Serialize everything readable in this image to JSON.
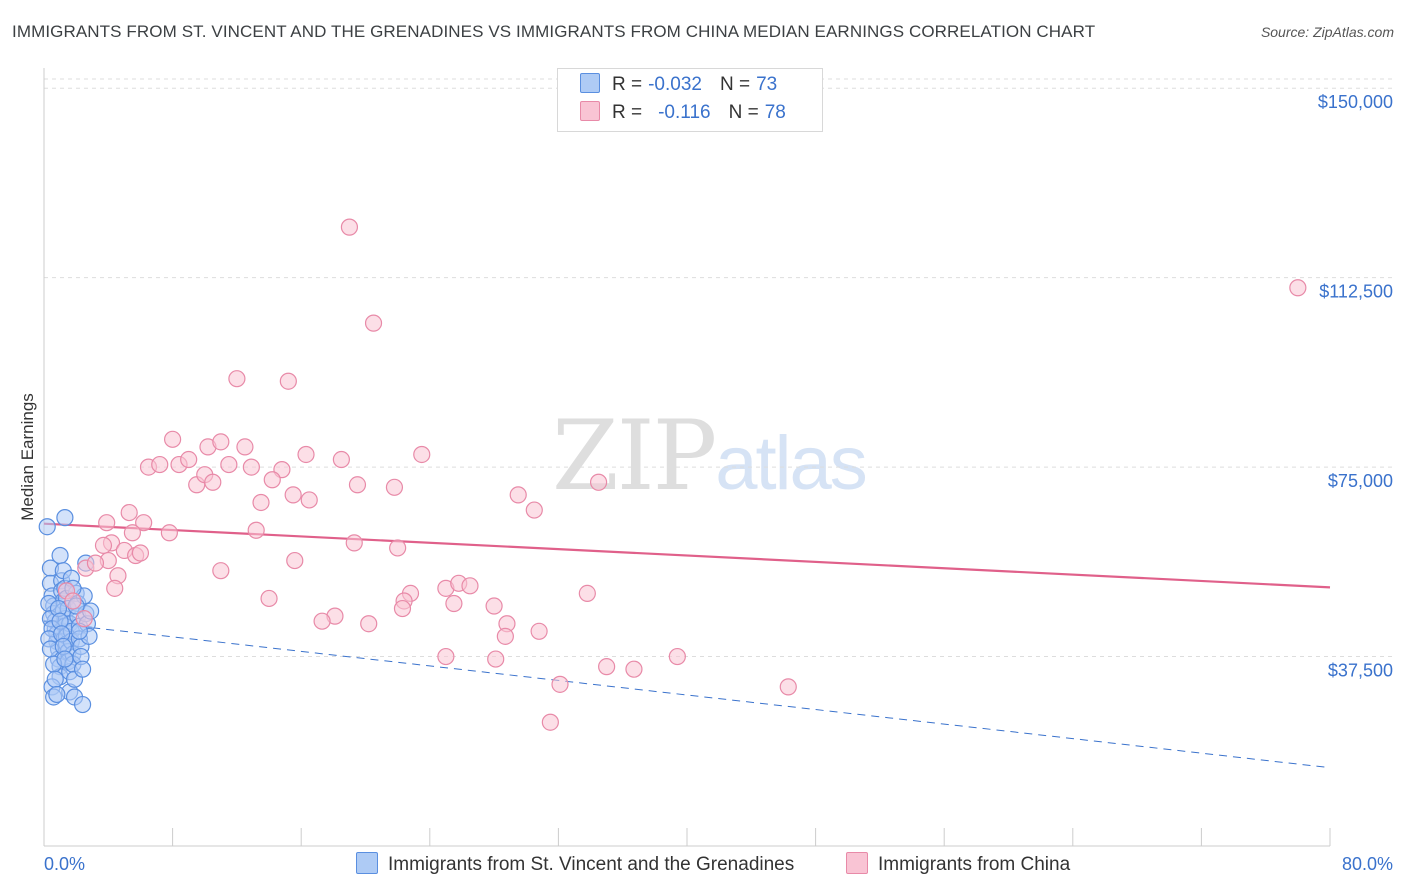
{
  "title": "IMMIGRANTS FROM ST. VINCENT AND THE GRENADINES VS IMMIGRANTS FROM CHINA MEDIAN EARNINGS CORRELATION CHART",
  "source": "Source: ZipAtlas.com",
  "watermark": {
    "zip": "ZIP",
    "atlas": "atlas"
  },
  "legend": {
    "rows": [
      {
        "r_label": "R =",
        "r_value": "-0.032",
        "n_label": "N =",
        "n_value": "73",
        "color": "#aecbf5",
        "border": "#5a8fe0"
      },
      {
        "r_label": "R =",
        "r_value": "-0.116",
        "n_label": "N =",
        "n_value": "78",
        "color": "#f9c4d4",
        "border": "#e88aa8"
      }
    ]
  },
  "bottom_legend": {
    "series1": "Immigrants from St. Vincent and the Grenadines",
    "series2": "Immigrants from China"
  },
  "chart_data": {
    "type": "scatter",
    "title": "IMMIGRANTS FROM ST. VINCENT AND THE GRENADINES VS IMMIGRANTS FROM CHINA MEDIAN EARNINGS CORRELATION CHART",
    "xlabel": "",
    "ylabel": "Median Earnings",
    "xlim": [
      0,
      80
    ],
    "ylim": [
      0,
      154000
    ],
    "x_tick_labels": [
      "0.0%",
      "80.0%"
    ],
    "y_ticks": [
      37500,
      75000,
      112500,
      150000
    ],
    "y_tick_labels": [
      "$37,500",
      "$75,000",
      "$112,500",
      "$150,000"
    ],
    "grid": true,
    "series": [
      {
        "name": "Immigrants from St. Vincent and the Grenadines",
        "color": "#5a8fe0",
        "fill": "#aecbf5",
        "trend": {
          "x": [
            0,
            3
          ],
          "y": [
            44500,
            43200
          ],
          "extended_x": [
            3,
            80
          ],
          "extended_y": [
            43200,
            15500
          ],
          "style": "dashed"
        },
        "points": [
          [
            0.2,
            63200
          ],
          [
            0.4,
            55000
          ],
          [
            0.4,
            52000
          ],
          [
            0.5,
            49500
          ],
          [
            0.6,
            47500
          ],
          [
            0.6,
            46000
          ],
          [
            0.7,
            44500
          ],
          [
            0.7,
            43000
          ],
          [
            0.8,
            42000
          ],
          [
            0.8,
            40500
          ],
          [
            0.9,
            39000
          ],
          [
            0.9,
            37000
          ],
          [
            1.0,
            35500
          ],
          [
            1.0,
            33500
          ],
          [
            0.5,
            31500
          ],
          [
            0.6,
            29500
          ],
          [
            1.1,
            52500
          ],
          [
            1.1,
            50500
          ],
          [
            1.2,
            48500
          ],
          [
            1.2,
            46500
          ],
          [
            1.3,
            45000
          ],
          [
            1.3,
            43500
          ],
          [
            1.4,
            41500
          ],
          [
            1.4,
            40000
          ],
          [
            1.5,
            38500
          ],
          [
            1.5,
            36500
          ],
          [
            1.6,
            34500
          ],
          [
            1.6,
            30500
          ],
          [
            1.0,
            57500
          ],
          [
            1.2,
            54500
          ],
          [
            1.3,
            51000
          ],
          [
            1.4,
            49000
          ],
          [
            1.5,
            47000
          ],
          [
            1.6,
            44000
          ],
          [
            1.7,
            42500
          ],
          [
            1.7,
            40500
          ],
          [
            1.8,
            38000
          ],
          [
            1.8,
            36000
          ],
          [
            1.9,
            33000
          ],
          [
            1.9,
            29500
          ],
          [
            2.0,
            50000
          ],
          [
            2.1,
            48000
          ],
          [
            2.1,
            45500
          ],
          [
            2.2,
            43500
          ],
          [
            2.2,
            41000
          ],
          [
            2.3,
            39500
          ],
          [
            2.3,
            37500
          ],
          [
            2.4,
            35000
          ],
          [
            2.4,
            28000
          ],
          [
            2.5,
            49500
          ],
          [
            2.6,
            46000
          ],
          [
            2.7,
            44000
          ],
          [
            2.8,
            41500
          ],
          [
            1.3,
            65000
          ],
          [
            2.6,
            56000
          ],
          [
            2.9,
            46500
          ],
          [
            0.3,
            48000
          ],
          [
            0.4,
            45000
          ],
          [
            0.5,
            43000
          ],
          [
            0.3,
            41000
          ],
          [
            0.4,
            39000
          ],
          [
            0.6,
            36000
          ],
          [
            0.7,
            33000
          ],
          [
            0.8,
            30000
          ],
          [
            0.9,
            47000
          ],
          [
            1.0,
            44500
          ],
          [
            1.1,
            42000
          ],
          [
            1.2,
            39500
          ],
          [
            1.3,
            37000
          ],
          [
            1.7,
            53000
          ],
          [
            1.8,
            51000
          ],
          [
            2.0,
            47500
          ],
          [
            2.2,
            42500
          ]
        ]
      },
      {
        "name": "Immigrants from China",
        "color": "#e88aa8",
        "fill": "#f9c4d4",
        "trend": {
          "x": [
            0,
            80
          ],
          "y": [
            63800,
            51200
          ],
          "style": "solid"
        },
        "points": [
          [
            19,
            122500
          ],
          [
            20.5,
            103500
          ],
          [
            12,
            92500
          ],
          [
            15.2,
            92000
          ],
          [
            78,
            110500
          ],
          [
            8,
            80500
          ],
          [
            10.2,
            79000
          ],
          [
            11.0,
            80000
          ],
          [
            12.5,
            79000
          ],
          [
            16.3,
            77500
          ],
          [
            18.5,
            76500
          ],
          [
            23.5,
            77500
          ],
          [
            6.5,
            75000
          ],
          [
            7.2,
            75500
          ],
          [
            8.4,
            75500
          ],
          [
            9.0,
            76500
          ],
          [
            11.5,
            75500
          ],
          [
            12.9,
            75000
          ],
          [
            14.8,
            74500
          ],
          [
            9.5,
            71500
          ],
          [
            10.0,
            73500
          ],
          [
            10.5,
            72000
          ],
          [
            14.2,
            72500
          ],
          [
            19.5,
            71500
          ],
          [
            21.8,
            71000
          ],
          [
            34.5,
            72000
          ],
          [
            13.5,
            68000
          ],
          [
            15.5,
            69500
          ],
          [
            16.5,
            68500
          ],
          [
            29.5,
            69500
          ],
          [
            30.5,
            66500
          ],
          [
            5.3,
            66000
          ],
          [
            6.2,
            64000
          ],
          [
            13.2,
            62500
          ],
          [
            7.8,
            62000
          ],
          [
            3.9,
            64000
          ],
          [
            4.2,
            60000
          ],
          [
            5.0,
            58500
          ],
          [
            5.5,
            62000
          ],
          [
            3.7,
            59500
          ],
          [
            5.7,
            57500
          ],
          [
            6.0,
            58000
          ],
          [
            19.3,
            60000
          ],
          [
            22.0,
            59000
          ],
          [
            15.6,
            56500
          ],
          [
            4.0,
            56500
          ],
          [
            2.6,
            55000
          ],
          [
            3.2,
            56000
          ],
          [
            11.0,
            54500
          ],
          [
            4.6,
            53500
          ],
          [
            4.4,
            51000
          ],
          [
            1.4,
            50500
          ],
          [
            1.8,
            48500
          ],
          [
            25.0,
            51000
          ],
          [
            25.8,
            52000
          ],
          [
            26.5,
            51500
          ],
          [
            33.8,
            50000
          ],
          [
            22.8,
            50000
          ],
          [
            22.4,
            48500
          ],
          [
            14.0,
            49000
          ],
          [
            25.5,
            48000
          ],
          [
            28.0,
            47500
          ],
          [
            22.3,
            47000
          ],
          [
            18.1,
            45500
          ],
          [
            17.3,
            44500
          ],
          [
            20.2,
            44000
          ],
          [
            28.8,
            44000
          ],
          [
            28.7,
            41500
          ],
          [
            30.8,
            42500
          ],
          [
            25.0,
            37500
          ],
          [
            28.1,
            37000
          ],
          [
            35.0,
            35500
          ],
          [
            36.7,
            35000
          ],
          [
            39.4,
            37500
          ],
          [
            32.1,
            32000
          ],
          [
            46.3,
            31500
          ],
          [
            31.5,
            24500
          ],
          [
            2.5,
            45000
          ]
        ]
      }
    ]
  }
}
